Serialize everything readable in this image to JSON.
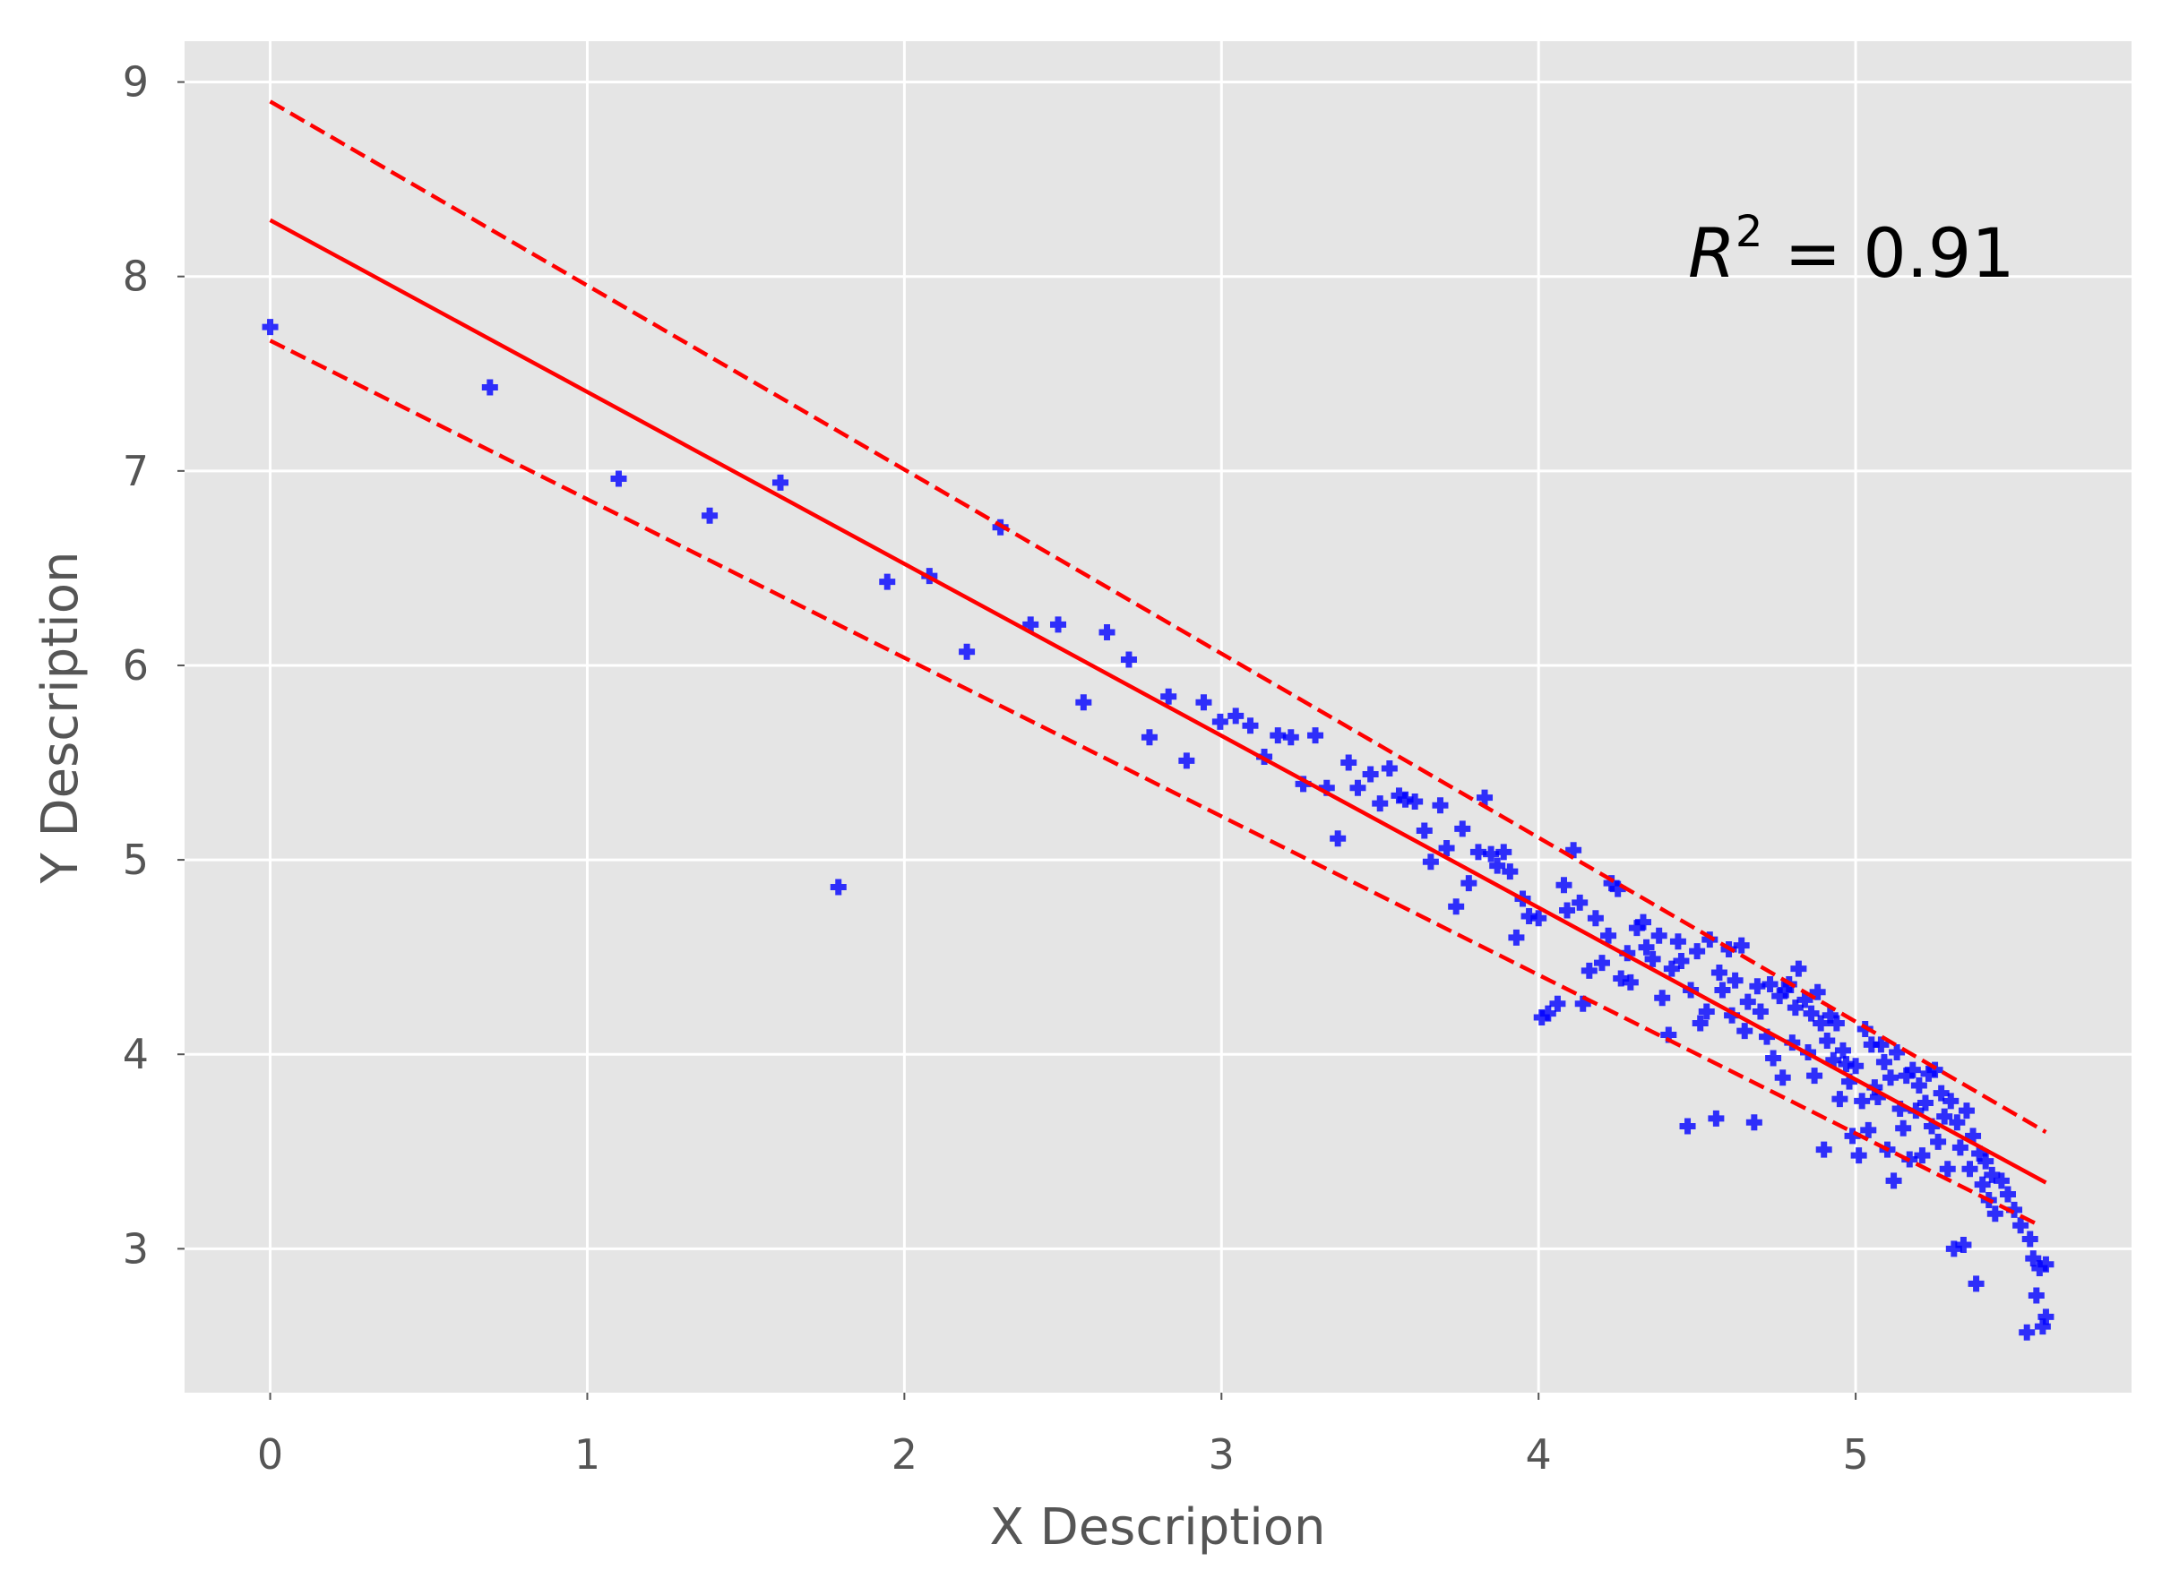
{
  "chart_data": {
    "type": "scatter",
    "x_label": "X Description",
    "y_label": "Y Description",
    "annotation": {
      "base": "R",
      "sup": "2",
      "rest": " = 0.91"
    },
    "color": "#0000ff",
    "xlim": [
      -0.27,
      5.87
    ],
    "ylim": [
      2.26,
      9.21
    ],
    "xticks": [
      0,
      1,
      2,
      3,
      4,
      5
    ],
    "yticks": [
      3,
      4,
      5,
      6,
      7,
      8,
      9
    ],
    "grid": true,
    "x": [
      0,
      0.693,
      1.099,
      1.386,
      1.609,
      1.792,
      1.946,
      2.079,
      2.197,
      2.303,
      2.398,
      2.485,
      2.565,
      2.639,
      2.708,
      2.773,
      2.833,
      2.89,
      2.944,
      2.996,
      3.045,
      3.091,
      3.135,
      3.178,
      3.219,
      3.258,
      3.296,
      3.332,
      3.367,
      3.401,
      3.43,
      3.47,
      3.5,
      3.53,
      3.56,
      3.58,
      3.61,
      3.64,
      3.66,
      3.69,
      3.71,
      3.74,
      3.76,
      3.78,
      3.81,
      3.83,
      3.85,
      3.87,
      3.89,
      3.91,
      3.93,
      3.95,
      3.97,
      4.0,
      4.01,
      4.03,
      4.06,
      4.08,
      4.09,
      4.11,
      4.13,
      4.14,
      4.16,
      4.18,
      4.2,
      4.22,
      4.23,
      4.25,
      4.26,
      4.28,
      4.29,
      4.31,
      4.33,
      4.34,
      4.36,
      4.38,
      4.39,
      4.41,
      4.42,
      4.44,
      4.45,
      4.47,
      4.48,
      4.5,
      4.51,
      4.53,
      4.54,
      4.56,
      4.57,
      4.58,
      4.6,
      4.61,
      4.62,
      4.64,
      4.65,
      4.66,
      4.68,
      4.69,
      4.7,
      4.72,
      4.73,
      4.74,
      4.76,
      4.77,
      4.78,
      4.79,
      4.8,
      4.81,
      4.82,
      4.84,
      4.85,
      4.86,
      4.87,
      4.88,
      4.89,
      4.9,
      4.91,
      4.92,
      4.93,
      4.94,
      4.95,
      4.96,
      4.97,
      4.98,
      4.99,
      5.0,
      5.01,
      5.02,
      5.03,
      5.04,
      5.05,
      5.06,
      5.07,
      5.08,
      5.09,
      5.1,
      5.11,
      5.12,
      5.13,
      5.14,
      5.15,
      5.16,
      5.17,
      5.18,
      5.19,
      5.2,
      5.21,
      5.22,
      5.23,
      5.24,
      5.25,
      5.26,
      5.27,
      5.28,
      5.29,
      5.3,
      5.31,
      5.32,
      5.33,
      5.34,
      5.35,
      5.36,
      5.37,
      5.38,
      5.39,
      5.4,
      5.41,
      5.42,
      5.43,
      5.44,
      5.46,
      5.48,
      5.5,
      5.52,
      5.54,
      5.55,
      5.56,
      5.57,
      5.58,
      5.59,
      5.6,
      5.6
    ],
    "values": [
      7.74,
      7.43,
      6.96,
      6.77,
      6.94,
      4.86,
      6.43,
      6.46,
      6.07,
      6.71,
      6.21,
      6.21,
      5.81,
      6.17,
      6.03,
      5.63,
      5.84,
      5.51,
      5.81,
      5.71,
      5.74,
      5.69,
      5.53,
      5.64,
      5.63,
      5.39,
      5.64,
      5.37,
      5.11,
      5.5,
      5.37,
      5.44,
      5.29,
      5.47,
      5.33,
      5.31,
      5.3,
      5.15,
      4.99,
      5.28,
      5.06,
      4.76,
      5.16,
      4.88,
      5.04,
      5.32,
      5.03,
      4.97,
      5.04,
      4.94,
      4.6,
      4.8,
      4.71,
      4.7,
      4.19,
      4.21,
      4.26,
      4.87,
      4.74,
      5.05,
      4.78,
      4.26,
      4.43,
      4.7,
      4.47,
      4.61,
      4.88,
      4.85,
      4.39,
      4.52,
      4.37,
      4.65,
      4.68,
      4.55,
      4.49,
      4.61,
      4.29,
      4.1,
      4.44,
      4.58,
      4.48,
      3.63,
      4.33,
      4.53,
      4.16,
      4.22,
      4.59,
      3.67,
      4.42,
      4.33,
      4.54,
      4.2,
      4.38,
      4.56,
      4.12,
      4.27,
      3.65,
      4.35,
      4.22,
      4.09,
      4.36,
      3.98,
      4.3,
      3.88,
      4.33,
      4.36,
      4.06,
      4.24,
      4.44,
      4.28,
      4.01,
      4.21,
      3.89,
      4.32,
      4.16,
      3.51,
      4.07,
      4.2,
      3.97,
      4.16,
      3.77,
      4.02,
      3.95,
      3.86,
      3.58,
      3.94,
      3.48,
      3.76,
      4.13,
      3.61,
      4.05,
      3.83,
      3.78,
      4.05,
      3.96,
      3.51,
      3.88,
      3.35,
      4.01,
      3.72,
      3.62,
      3.89,
      3.46,
      3.92,
      3.71,
      3.84,
      3.48,
      3.75,
      3.9,
      3.63,
      3.92,
      3.55,
      3.8,
      3.68,
      3.41,
      3.76,
      3.0,
      3.65,
      3.52,
      3.02,
      3.71,
      3.41,
      3.58,
      2.82,
      3.49,
      3.33,
      3.45,
      3.25,
      3.38,
      3.18,
      3.35,
      3.28,
      3.2,
      3.12,
      2.57,
      3.05,
      2.95,
      2.76,
      2.9,
      2.6,
      2.65,
      2.92
    ],
    "lines": [
      {
        "x": [
          0,
          5.6
        ],
        "values": [
          8.29,
          3.34
        ],
        "color": "#ff0000",
        "dash": false
      },
      {
        "x": [
          0,
          5.6
        ],
        "values": [
          8.9,
          3.6
        ],
        "color": "#ff0000",
        "dash": true
      },
      {
        "x": [
          0,
          5.58
        ],
        "values": [
          7.67,
          3.12
        ],
        "color": "#ff0000",
        "dash": true
      }
    ]
  }
}
